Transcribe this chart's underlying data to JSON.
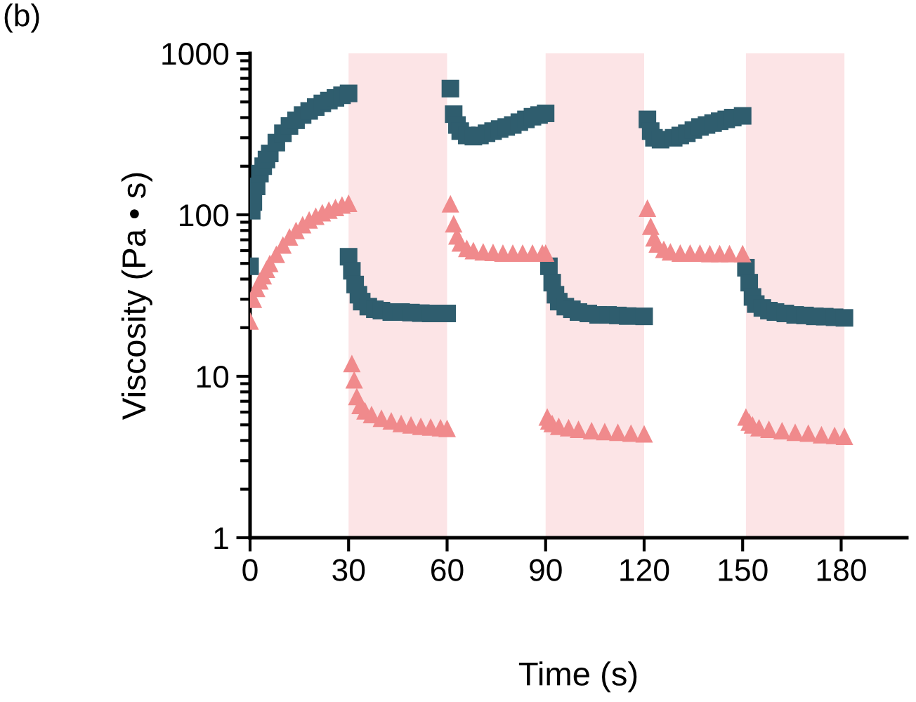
{
  "chart_data": {
    "type": "scatter",
    "xlabel": "Time (s)",
    "ylabel": "Viscosity (Pa • s)",
    "annotations": [
      "(b)"
    ],
    "log": "y",
    "xlim": [
      0,
      200
    ],
    "xticks": [
      0,
      30,
      60,
      90,
      120,
      150,
      180
    ],
    "ylim": [
      1,
      1000
    ],
    "yticks": [
      1,
      10,
      100,
      1000
    ],
    "grid": false,
    "bands": [
      {
        "axis": "x",
        "from": 30,
        "to": 60,
        "color": "#fce4e6"
      },
      {
        "axis": "x",
        "from": 90,
        "to": 120,
        "color": "#fce4e6"
      },
      {
        "axis": "x",
        "from": 151,
        "to": 181,
        "color": "#fce4e6"
      }
    ],
    "series": [
      {
        "color": "#2f5d6e",
        "marker": "square",
        "x": [
          0,
          0.5,
          1,
          2,
          3,
          4,
          5,
          6,
          8,
          10,
          12,
          14,
          16,
          18,
          20,
          22,
          24,
          26,
          28,
          30,
          30,
          31,
          32,
          33,
          34,
          36,
          38,
          40,
          43,
          46,
          49,
          52,
          55,
          60,
          61,
          62,
          63,
          64,
          66,
          68,
          70,
          72,
          74,
          76,
          78,
          80,
          82,
          84,
          86,
          88,
          90,
          91,
          92,
          93,
          94,
          96,
          98,
          100,
          103,
          106,
          109,
          112,
          115,
          120,
          121,
          122,
          123,
          125,
          129,
          131,
          133,
          135,
          137,
          139,
          141,
          143,
          145,
          147,
          150,
          151,
          152,
          153,
          154,
          156,
          158,
          160,
          163,
          166,
          169,
          172,
          175,
          178,
          181
        ],
        "values": [
          48,
          106,
          120,
          150,
          180,
          200,
          220,
          240,
          280,
          320,
          355,
          385,
          415,
          440,
          465,
          490,
          510,
          530,
          550,
          565,
          55,
          45,
          37,
          32,
          29,
          27,
          26,
          25.5,
          25,
          25,
          24.8,
          24.6,
          24.5,
          24.5,
          605,
          420,
          360,
          330,
          310,
          305,
          310,
          320,
          330,
          340,
          350,
          360,
          375,
          390,
          405,
          415,
          425,
          48,
          38,
          32,
          29,
          27,
          26,
          25,
          24.5,
          24,
          24,
          23.8,
          23.6,
          23.5,
          390,
          330,
          300,
          292,
          300,
          310,
          320,
          335,
          350,
          360,
          370,
          380,
          390,
          400,
          410,
          47,
          38,
          31,
          28,
          26.5,
          25.5,
          25,
          24.5,
          24,
          23.8,
          23.5,
          23.4,
          23.2,
          23
        ]
      },
      {
        "color": "#f08a8c",
        "marker": "triangle",
        "x": [
          0,
          1,
          2,
          3,
          4,
          5,
          6,
          8,
          10,
          12,
          14,
          16,
          18,
          20,
          22,
          24,
          26,
          28,
          30,
          31,
          31.7,
          32.5,
          33.5,
          35,
          37,
          40,
          43,
          46,
          49,
          52,
          55,
          58,
          60,
          61,
          62,
          63,
          64,
          66,
          68,
          71,
          74,
          77,
          80,
          83,
          86,
          89,
          90,
          90.5,
          91,
          92,
          94,
          97,
          100,
          104,
          108,
          112,
          116,
          120,
          121,
          122,
          123,
          124,
          126,
          128,
          131,
          134,
          137,
          140,
          143,
          146,
          150,
          151,
          152,
          153,
          155,
          158,
          162,
          166,
          170,
          174,
          178,
          181
        ],
        "values": [
          22,
          30,
          35,
          39,
          42,
          46,
          50,
          57,
          65,
          73,
          80,
          87,
          93,
          98,
          103,
          107,
          111,
          115,
          118,
          12,
          9.5,
          7.5,
          6.6,
          6.1,
          5.8,
          5.5,
          5.3,
          5.1,
          5.0,
          4.9,
          4.85,
          4.8,
          4.75,
          117,
          88,
          74,
          67,
          62,
          60,
          59,
          58.5,
          58,
          58,
          58,
          58,
          58,
          58,
          5.6,
          5.3,
          5.1,
          4.9,
          4.8,
          4.7,
          4.6,
          4.55,
          4.5,
          4.45,
          4.4,
          110,
          85,
          72,
          66,
          61,
          59,
          58,
          58,
          58,
          57.5,
          57.5,
          57.5,
          57.5,
          5.6,
          5.2,
          5.0,
          4.8,
          4.7,
          4.6,
          4.5,
          4.45,
          4.35,
          4.3,
          4.25
        ]
      }
    ]
  }
}
